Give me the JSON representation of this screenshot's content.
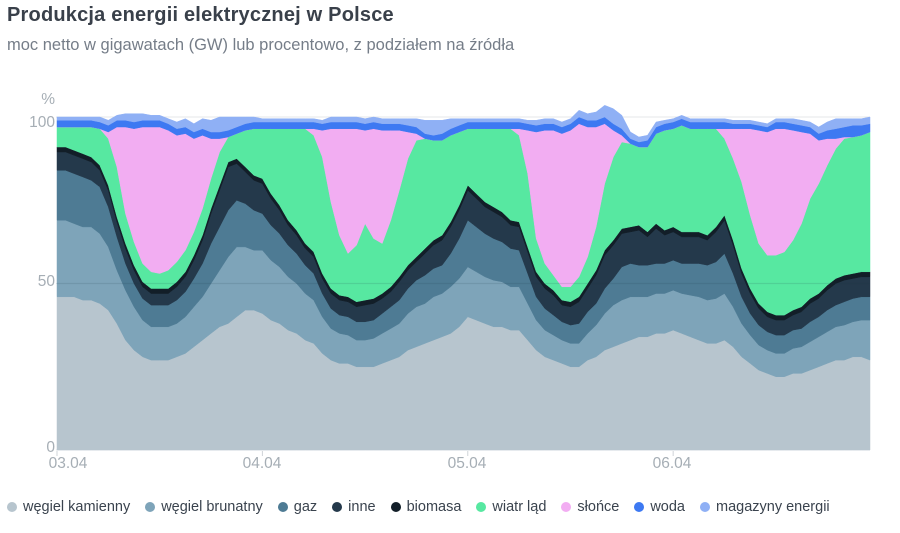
{
  "header": {
    "title": "Produkcja energii elektrycznej w Polsce",
    "subtitle": "moc netto w gigawatach (GW) lub procentowo, z podziałem na źródła"
  },
  "axis": {
    "unit": "%",
    "y_ticks": [
      "100",
      "50",
      "0"
    ]
  },
  "colors": {
    "grid_light": "#e4e7ea",
    "grid_overlay": "rgba(28,48,62,0.12)",
    "tick": "#cfd4d8"
  },
  "chart_data": {
    "type": "area",
    "stacked": true,
    "unit": "percent of total net power",
    "title": "Produkcja energii elektrycznej w Polsce",
    "subtitle": "moc netto w gigawatach (GW) lub procentowo, z podziałem na źródła",
    "x_unit": "hours from 03.04 00:00",
    "x_step_hours": 1,
    "x_tick_positions_hours": [
      0,
      24,
      48,
      72
    ],
    "x_tick_labels": [
      "03.04",
      "04.04",
      "05.04",
      "06.04"
    ],
    "ylim": [
      0,
      100
    ],
    "grid_y": [
      50,
      100
    ],
    "legend_position": "bottom",
    "series": [
      {
        "name": "węgiel kamienny",
        "color": "#b7c5ce",
        "values": [
          46,
          46,
          46,
          45,
          45,
          44,
          42,
          38,
          33,
          30,
          28,
          27,
          27,
          27,
          28,
          29,
          31,
          33,
          35,
          37,
          38,
          40,
          42,
          42,
          41,
          39,
          38,
          36,
          35,
          33,
          32,
          29,
          27,
          26,
          26,
          25,
          25,
          25,
          26,
          27,
          28,
          30,
          31,
          32,
          33,
          34,
          35,
          37,
          40,
          39,
          38,
          37,
          37,
          36,
          36,
          33,
          30,
          28,
          27,
          26,
          25,
          25,
          27,
          28,
          30,
          31,
          32,
          33,
          34,
          34,
          35,
          35,
          36,
          35,
          34,
          33,
          32,
          32,
          33,
          31,
          28,
          26,
          24,
          23,
          22,
          22,
          23,
          23,
          24,
          25,
          26,
          27,
          27,
          28,
          28,
          27
        ]
      },
      {
        "name": "węgiel brunatny",
        "color": "#7ea4b9",
        "values": [
          23,
          23,
          22,
          22,
          22,
          21,
          19,
          16,
          15,
          13,
          11,
          10,
          10,
          10,
          10,
          11,
          12,
          13,
          15,
          17,
          20,
          21,
          19,
          18,
          19,
          18,
          17,
          16,
          15,
          14,
          13,
          11,
          9.5,
          9,
          8.5,
          8,
          8,
          8.5,
          9,
          9.5,
          10,
          11,
          12,
          12,
          13,
          13,
          14,
          14.5,
          15,
          14.5,
          14,
          14,
          13.5,
          13,
          13,
          11,
          9,
          8,
          7.5,
          7,
          7,
          7,
          8,
          9.5,
          11,
          12.5,
          13,
          13,
          12,
          12,
          12,
          12,
          12,
          12,
          12.5,
          13,
          13,
          13.5,
          14,
          12,
          10,
          8.5,
          7.5,
          7,
          7,
          7,
          7.5,
          8,
          8.5,
          9,
          9.5,
          10,
          10.5,
          10.5,
          11,
          12
        ]
      },
      {
        "name": "gaz",
        "color": "#4e7b94",
        "values": [
          15,
          15,
          15,
          15,
          14,
          14,
          12,
          10,
          8,
          7,
          6.5,
          6.5,
          6.5,
          6.5,
          7,
          7.5,
          8.5,
          10,
          12,
          13,
          14,
          14,
          13,
          12,
          11,
          10.5,
          10,
          9.5,
          9,
          8.5,
          8,
          7,
          6,
          5.5,
          5.5,
          5.5,
          5.5,
          5.5,
          6,
          6.5,
          7,
          7.5,
          8,
          8.5,
          8.5,
          8.5,
          10,
          12,
          14,
          13.5,
          13,
          12.5,
          12,
          11.5,
          11,
          9,
          7,
          6.5,
          6,
          5.5,
          5.5,
          6,
          6.5,
          6.5,
          7.5,
          8,
          10,
          10,
          9.5,
          9.5,
          9,
          9,
          9,
          9,
          9.5,
          10,
          10.5,
          11,
          12,
          10,
          8,
          6.5,
          6,
          5.5,
          5.5,
          5.5,
          5.5,
          5.5,
          6,
          6,
          6.5,
          6.5,
          7,
          7,
          7,
          7
        ]
      },
      {
        "name": "inne",
        "color": "#24394b",
        "values": [
          5.5,
          5.5,
          5.5,
          5.5,
          5.5,
          5,
          5,
          4.5,
          4.5,
          4,
          3.5,
          3.5,
          3.5,
          3.5,
          4,
          4.5,
          5.5,
          7,
          9,
          11,
          13,
          11,
          9.5,
          9,
          9,
          8,
          7,
          6,
          5.5,
          5,
          5,
          4.5,
          4.5,
          4.5,
          4.5,
          4.5,
          5,
          5,
          4.5,
          4.5,
          5.5,
          5.5,
          5.5,
          6.5,
          7,
          7.5,
          8,
          8.5,
          9,
          8.5,
          8,
          8,
          7.5,
          7,
          7,
          6.5,
          6,
          6,
          6,
          5,
          5.5,
          6.5,
          7,
          8.5,
          10,
          10,
          10,
          9.5,
          10.5,
          8.5,
          10.5,
          8.5,
          8.5,
          8,
          8,
          8,
          7.5,
          9,
          10,
          8.5,
          7,
          6,
          5,
          4.5,
          4.5,
          4.5,
          4.5,
          5,
          5.5,
          5.5,
          6,
          6.5,
          6.5,
          6,
          6,
          6
        ]
      },
      {
        "name": "biomasa",
        "color": "#121e28",
        "values": [
          1.5,
          1.5,
          1.5,
          1.5,
          1.5,
          1.5,
          1.5,
          1.5,
          1.5,
          1.5,
          1.5,
          1.5,
          1.5,
          1.5,
          1.5,
          1.5,
          1.5,
          1.5,
          1.5,
          1.5,
          1.5,
          1.5,
          1.5,
          1.5,
          1.5,
          1.5,
          1.5,
          1.5,
          1.5,
          1.5,
          1.5,
          1.5,
          1.5,
          1.5,
          1.5,
          1.5,
          1.5,
          1.5,
          1.5,
          1.5,
          1.5,
          1.5,
          1.5,
          1.5,
          1.5,
          1.5,
          1.5,
          1.5,
          1.5,
          1.5,
          1.5,
          1.5,
          1.5,
          1.5,
          1.5,
          1.5,
          1.5,
          1.5,
          1.5,
          1.5,
          1.5,
          1.5,
          1.5,
          1.5,
          1.5,
          1.5,
          1.5,
          1.5,
          1.5,
          1.5,
          1.5,
          1.5,
          1.5,
          1.5,
          1.5,
          1.5,
          1.5,
          1.5,
          1.5,
          1.5,
          1.5,
          1.5,
          1.5,
          1.5,
          1.5,
          1.5,
          1.5,
          1.5,
          1.5,
          1.5,
          1.5,
          1.5,
          1.5,
          1.5,
          1.5,
          1.5
        ]
      },
      {
        "name": "wiatr ląd",
        "color": "#57e8a1",
        "values": [
          6,
          6,
          7,
          8,
          9,
          11,
          14,
          15,
          9,
          7,
          5.5,
          5,
          4.5,
          5.5,
          6,
          6.5,
          7,
          8,
          9,
          10,
          7.5,
          7.5,
          11,
          14,
          15,
          19.5,
          23,
          27.5,
          30.5,
          34.5,
          35,
          35,
          26,
          18,
          13,
          17,
          23,
          18,
          15,
          20,
          26,
          32,
          35,
          33,
          30,
          28.5,
          26,
          22,
          17,
          19.5,
          22,
          23.5,
          25,
          27.5,
          26,
          22,
          10,
          6,
          4.5,
          4,
          4.5,
          6,
          8,
          13,
          20,
          25,
          26,
          25,
          23.5,
          25.5,
          27,
          30,
          29.5,
          32,
          31,
          31,
          32,
          29.5,
          23,
          24.5,
          26,
          22,
          18,
          17,
          18,
          19,
          21,
          25,
          30,
          33,
          36,
          39,
          41,
          41,
          41,
          42
        ]
      },
      {
        "name": "słońce",
        "color": "#f2adf2",
        "values": [
          0,
          0,
          0,
          0,
          0,
          0,
          2,
          12,
          26,
          34,
          41,
          43.5,
          44,
          42,
          38,
          35,
          28,
          22,
          12,
          4,
          0,
          0,
          0,
          0,
          0,
          0,
          0,
          0,
          0,
          0,
          2,
          8,
          22,
          32,
          37.5,
          35,
          28,
          33,
          34,
          27,
          18,
          8,
          2,
          0,
          0,
          0,
          0,
          0,
          0,
          0,
          0,
          0,
          0,
          0,
          2,
          13,
          32,
          40,
          43.5,
          46,
          47,
          46,
          39,
          30,
          18,
          8,
          2,
          0,
          0,
          0,
          0,
          0,
          0,
          0,
          0,
          0,
          0,
          0,
          3,
          9,
          16,
          26,
          34,
          37,
          38,
          37,
          33,
          27.5,
          19.5,
          13,
          8,
          3,
          0.5,
          0,
          0,
          0
        ]
      },
      {
        "name": "woda",
        "color": "#3d79f2",
        "values": [
          2,
          2,
          2,
          2,
          2,
          2,
          2,
          2,
          2,
          2,
          2,
          2,
          2,
          2,
          2,
          2,
          2,
          2,
          2,
          2,
          2,
          2,
          2,
          2,
          2,
          2,
          2,
          2,
          2,
          2,
          2,
          2,
          2,
          2,
          2,
          2,
          2,
          2,
          2,
          2,
          2,
          2,
          2,
          1.5,
          1.5,
          2,
          2,
          2,
          2,
          2,
          2,
          2,
          2,
          2,
          2,
          2,
          2,
          2,
          2,
          2,
          2,
          2,
          2,
          2,
          2,
          2,
          2,
          1.5,
          1.5,
          2,
          2,
          2,
          2,
          2,
          2,
          2,
          2,
          2,
          2,
          1.5,
          1.5,
          1.5,
          1.5,
          1.5,
          2,
          2,
          2,
          2,
          2,
          2,
          2.5,
          3,
          3,
          3.5,
          3,
          2.5
        ]
      },
      {
        "name": "magazyny energii",
        "color": "#8fb0f5",
        "values": [
          1,
          1,
          1,
          1,
          1,
          1.5,
          1.5,
          1.5,
          2,
          2.5,
          2,
          1.5,
          1.5,
          1.5,
          2,
          2.5,
          2.5,
          3,
          3.5,
          4.5,
          4,
          3,
          2,
          1.5,
          1,
          1,
          1,
          1,
          1,
          1,
          1,
          1,
          1.5,
          1.5,
          1.5,
          1.5,
          1.5,
          1.5,
          1.5,
          1.5,
          1.5,
          2,
          2.5,
          4,
          4.5,
          4,
          3,
          2,
          1,
          1,
          1,
          1,
          1,
          1,
          1,
          1,
          1.5,
          1.5,
          1.5,
          1.5,
          1.5,
          2,
          2,
          2.5,
          3.5,
          4.5,
          4,
          2,
          1.5,
          1.5,
          1.5,
          1,
          1,
          1,
          1,
          1,
          1,
          1,
          1,
          1,
          1,
          1,
          1,
          1,
          1,
          1,
          1.5,
          1.5,
          1.5,
          2,
          2.5,
          3,
          2.5,
          2,
          2,
          2
        ]
      }
    ]
  }
}
